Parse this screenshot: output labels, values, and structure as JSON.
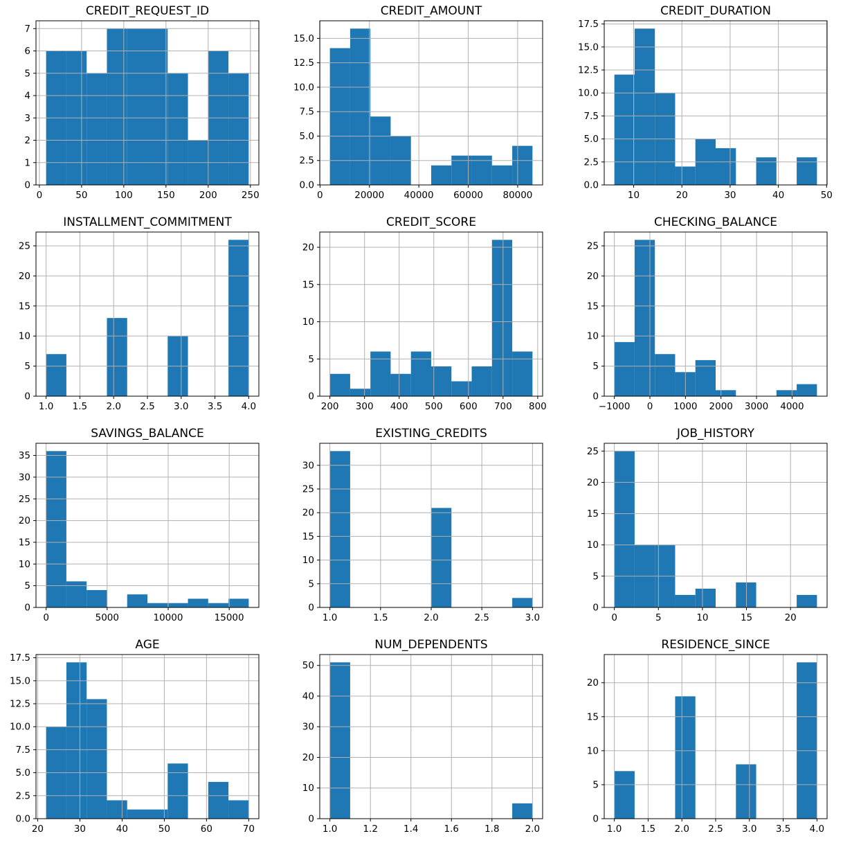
{
  "figure": {
    "kind": "histogram-grid",
    "rows": 4,
    "cols": 3,
    "bar_color": "#1f77b4",
    "grid_color": "#b0b0b0",
    "spine_color": "#000000",
    "text_color": "#000000",
    "background_color": "#ffffff",
    "grid_on": true,
    "legend": "none"
  },
  "chart_data": [
    {
      "type": "bar",
      "subtype": "histogram",
      "title": "CREDIT_REQUEST_ID",
      "bin_start": 8,
      "bin_width": 24,
      "values": [
        6,
        6,
        5,
        7,
        7,
        7,
        5,
        2,
        6,
        5
      ],
      "xlim": [
        -4,
        260
      ],
      "ylim": [
        0,
        7.35
      ],
      "xticks": [
        0,
        50,
        100,
        150,
        200,
        250
      ],
      "xtick_labels": [
        "0",
        "50",
        "100",
        "150",
        "200",
        "250"
      ],
      "yticks": [
        0,
        1,
        2,
        3,
        4,
        5,
        6,
        7
      ],
      "ytick_labels": [
        "0",
        "1",
        "2",
        "3",
        "4",
        "5",
        "6",
        "7"
      ]
    },
    {
      "type": "bar",
      "subtype": "histogram",
      "title": "CREDIT_AMOUNT",
      "bin_start": 4000,
      "bin_width": 8200,
      "values": [
        14,
        16,
        7,
        5,
        0,
        2,
        3,
        3,
        2,
        4
      ],
      "xlim": [
        -100,
        90100
      ],
      "ylim": [
        0,
        16.8
      ],
      "xticks": [
        0,
        20000,
        40000,
        60000,
        80000
      ],
      "xtick_labels": [
        "0",
        "20000",
        "40000",
        "60000",
        "80000"
      ],
      "yticks": [
        0,
        2.5,
        5,
        7.5,
        10,
        12.5,
        15
      ],
      "ytick_labels": [
        "0.0",
        "2.5",
        "5.0",
        "7.5",
        "10.0",
        "12.5",
        "15.0"
      ]
    },
    {
      "type": "bar",
      "subtype": "histogram",
      "title": "CREDIT_DURATION",
      "bin_start": 6,
      "bin_width": 4.2,
      "values": [
        12,
        17,
        10,
        2,
        5,
        4,
        0,
        3,
        0,
        3
      ],
      "xlim": [
        3.9,
        50.1
      ],
      "ylim": [
        0,
        17.85
      ],
      "xticks": [
        10,
        20,
        30,
        40,
        50
      ],
      "xtick_labels": [
        "10",
        "20",
        "30",
        "40",
        "50"
      ],
      "yticks": [
        0,
        2.5,
        5,
        7.5,
        10,
        12.5,
        15,
        17.5
      ],
      "ytick_labels": [
        "0.0",
        "2.5",
        "5.0",
        "7.5",
        "10.0",
        "12.5",
        "15.0",
        "17.5"
      ]
    },
    {
      "type": "bar",
      "subtype": "histogram",
      "title": "INSTALLMENT_COMMITMENT",
      "bin_start": 1,
      "bin_width": 0.3,
      "values": [
        7,
        0,
        0,
        13,
        0,
        0,
        10,
        0,
        0,
        26
      ],
      "xlim": [
        0.85,
        4.15
      ],
      "ylim": [
        0,
        27.3
      ],
      "xticks": [
        1,
        1.5,
        2,
        2.5,
        3,
        3.5,
        4
      ],
      "xtick_labels": [
        "1.0",
        "1.5",
        "2.0",
        "2.5",
        "3.0",
        "3.5",
        "4.0"
      ],
      "yticks": [
        0,
        5,
        10,
        15,
        20,
        25
      ],
      "ytick_labels": [
        "0",
        "5",
        "10",
        "15",
        "20",
        "25"
      ]
    },
    {
      "type": "bar",
      "subtype": "histogram",
      "title": "CREDIT_SCORE",
      "bin_start": 200,
      "bin_width": 58.5,
      "values": [
        3,
        1,
        6,
        3,
        6,
        4,
        2,
        4,
        21,
        6
      ],
      "xlim": [
        170.75,
        814.25
      ],
      "ylim": [
        0,
        22.05
      ],
      "xticks": [
        200,
        300,
        400,
        500,
        600,
        700,
        800
      ],
      "xtick_labels": [
        "200",
        "300",
        "400",
        "500",
        "600",
        "700",
        "800"
      ],
      "yticks": [
        0,
        5,
        10,
        15,
        20
      ],
      "ytick_labels": [
        "0",
        "5",
        "10",
        "15",
        "20"
      ]
    },
    {
      "type": "bar",
      "subtype": "histogram",
      "title": "CHECKING_BALANCE",
      "bin_start": -1000,
      "bin_width": 570,
      "values": [
        9,
        26,
        7,
        4,
        6,
        1,
        0,
        0,
        1,
        2
      ],
      "xlim": [
        -1285,
        4985
      ],
      "ylim": [
        0,
        27.3
      ],
      "xticks": [
        -1000,
        0,
        1000,
        2000,
        3000,
        4000
      ],
      "xtick_labels": [
        "−1000",
        "0",
        "1000",
        "2000",
        "3000",
        "4000"
      ],
      "yticks": [
        0,
        5,
        10,
        15,
        20,
        25
      ],
      "ytick_labels": [
        "0",
        "5",
        "10",
        "15",
        "20",
        "25"
      ]
    },
    {
      "type": "bar",
      "subtype": "histogram",
      "title": "SAVINGS_BALANCE",
      "bin_start": 0,
      "bin_width": 1660,
      "values": [
        36,
        6,
        4,
        0,
        3,
        1,
        1,
        2,
        1,
        2
      ],
      "xlim": [
        -830,
        17430
      ],
      "ylim": [
        0,
        37.8
      ],
      "xticks": [
        0,
        5000,
        10000,
        15000
      ],
      "xtick_labels": [
        "0",
        "5000",
        "10000",
        "15000"
      ],
      "yticks": [
        0,
        5,
        10,
        15,
        20,
        25,
        30,
        35
      ],
      "ytick_labels": [
        "0",
        "5",
        "10",
        "15",
        "20",
        "25",
        "30",
        "35"
      ]
    },
    {
      "type": "bar",
      "subtype": "histogram",
      "title": "EXISTING_CREDITS",
      "bin_start": 1,
      "bin_width": 0.2,
      "values": [
        33,
        0,
        0,
        0,
        0,
        21,
        0,
        0,
        0,
        2
      ],
      "xlim": [
        0.9,
        3.1
      ],
      "ylim": [
        0,
        34.65
      ],
      "xticks": [
        1,
        1.5,
        2,
        2.5,
        3
      ],
      "xtick_labels": [
        "1.0",
        "1.5",
        "2.0",
        "2.5",
        "3.0"
      ],
      "yticks": [
        0,
        5,
        10,
        15,
        20,
        25,
        30
      ],
      "ytick_labels": [
        "0",
        "5",
        "10",
        "15",
        "20",
        "25",
        "30"
      ]
    },
    {
      "type": "bar",
      "subtype": "histogram",
      "title": "JOB_HISTORY",
      "bin_start": 0,
      "bin_width": 2.3,
      "values": [
        25,
        10,
        10,
        2,
        3,
        0,
        4,
        0,
        0,
        2
      ],
      "xlim": [
        -1.15,
        24.15
      ],
      "ylim": [
        0,
        26.25
      ],
      "xticks": [
        0,
        5,
        10,
        15,
        20
      ],
      "xtick_labels": [
        "0",
        "5",
        "10",
        "15",
        "20"
      ],
      "yticks": [
        0,
        5,
        10,
        15,
        20,
        25
      ],
      "ytick_labels": [
        "0",
        "5",
        "10",
        "15",
        "20",
        "25"
      ]
    },
    {
      "type": "bar",
      "subtype": "histogram",
      "title": "AGE",
      "bin_start": 22,
      "bin_width": 4.8,
      "values": [
        10,
        17,
        13,
        2,
        1,
        1,
        6,
        0,
        4,
        2
      ],
      "xlim": [
        19.6,
        72.4
      ],
      "ylim": [
        0,
        17.85
      ],
      "xticks": [
        20,
        30,
        40,
        50,
        60,
        70
      ],
      "xtick_labels": [
        "20",
        "30",
        "40",
        "50",
        "60",
        "70"
      ],
      "yticks": [
        0,
        2.5,
        5,
        7.5,
        10,
        12.5,
        15,
        17.5
      ],
      "ytick_labels": [
        "0.0",
        "2.5",
        "5.0",
        "7.5",
        "10.0",
        "12.5",
        "15.0",
        "17.5"
      ]
    },
    {
      "type": "bar",
      "subtype": "histogram",
      "title": "NUM_DEPENDENTS",
      "bin_start": 1,
      "bin_width": 0.1,
      "values": [
        51,
        0,
        0,
        0,
        0,
        0,
        0,
        0,
        0,
        5
      ],
      "xlim": [
        0.95,
        2.05
      ],
      "ylim": [
        0,
        53.55
      ],
      "xticks": [
        1,
        1.2,
        1.4,
        1.6,
        1.8,
        2
      ],
      "xtick_labels": [
        "1.0",
        "1.2",
        "1.4",
        "1.6",
        "1.8",
        "2.0"
      ],
      "yticks": [
        0,
        10,
        20,
        30,
        40,
        50
      ],
      "ytick_labels": [
        "0",
        "10",
        "20",
        "30",
        "40",
        "50"
      ]
    },
    {
      "type": "bar",
      "subtype": "histogram",
      "title": "RESIDENCE_SINCE",
      "bin_start": 1,
      "bin_width": 0.3,
      "values": [
        7,
        0,
        0,
        18,
        0,
        0,
        8,
        0,
        0,
        23
      ],
      "xlim": [
        0.85,
        4.15
      ],
      "ylim": [
        0,
        24.15
      ],
      "xticks": [
        1,
        1.5,
        2,
        2.5,
        3,
        3.5,
        4
      ],
      "xtick_labels": [
        "1.0",
        "1.5",
        "2.0",
        "2.5",
        "3.0",
        "3.5",
        "4.0"
      ],
      "yticks": [
        0,
        5,
        10,
        15,
        20
      ],
      "ytick_labels": [
        "0",
        "5",
        "10",
        "15",
        "20"
      ]
    }
  ]
}
